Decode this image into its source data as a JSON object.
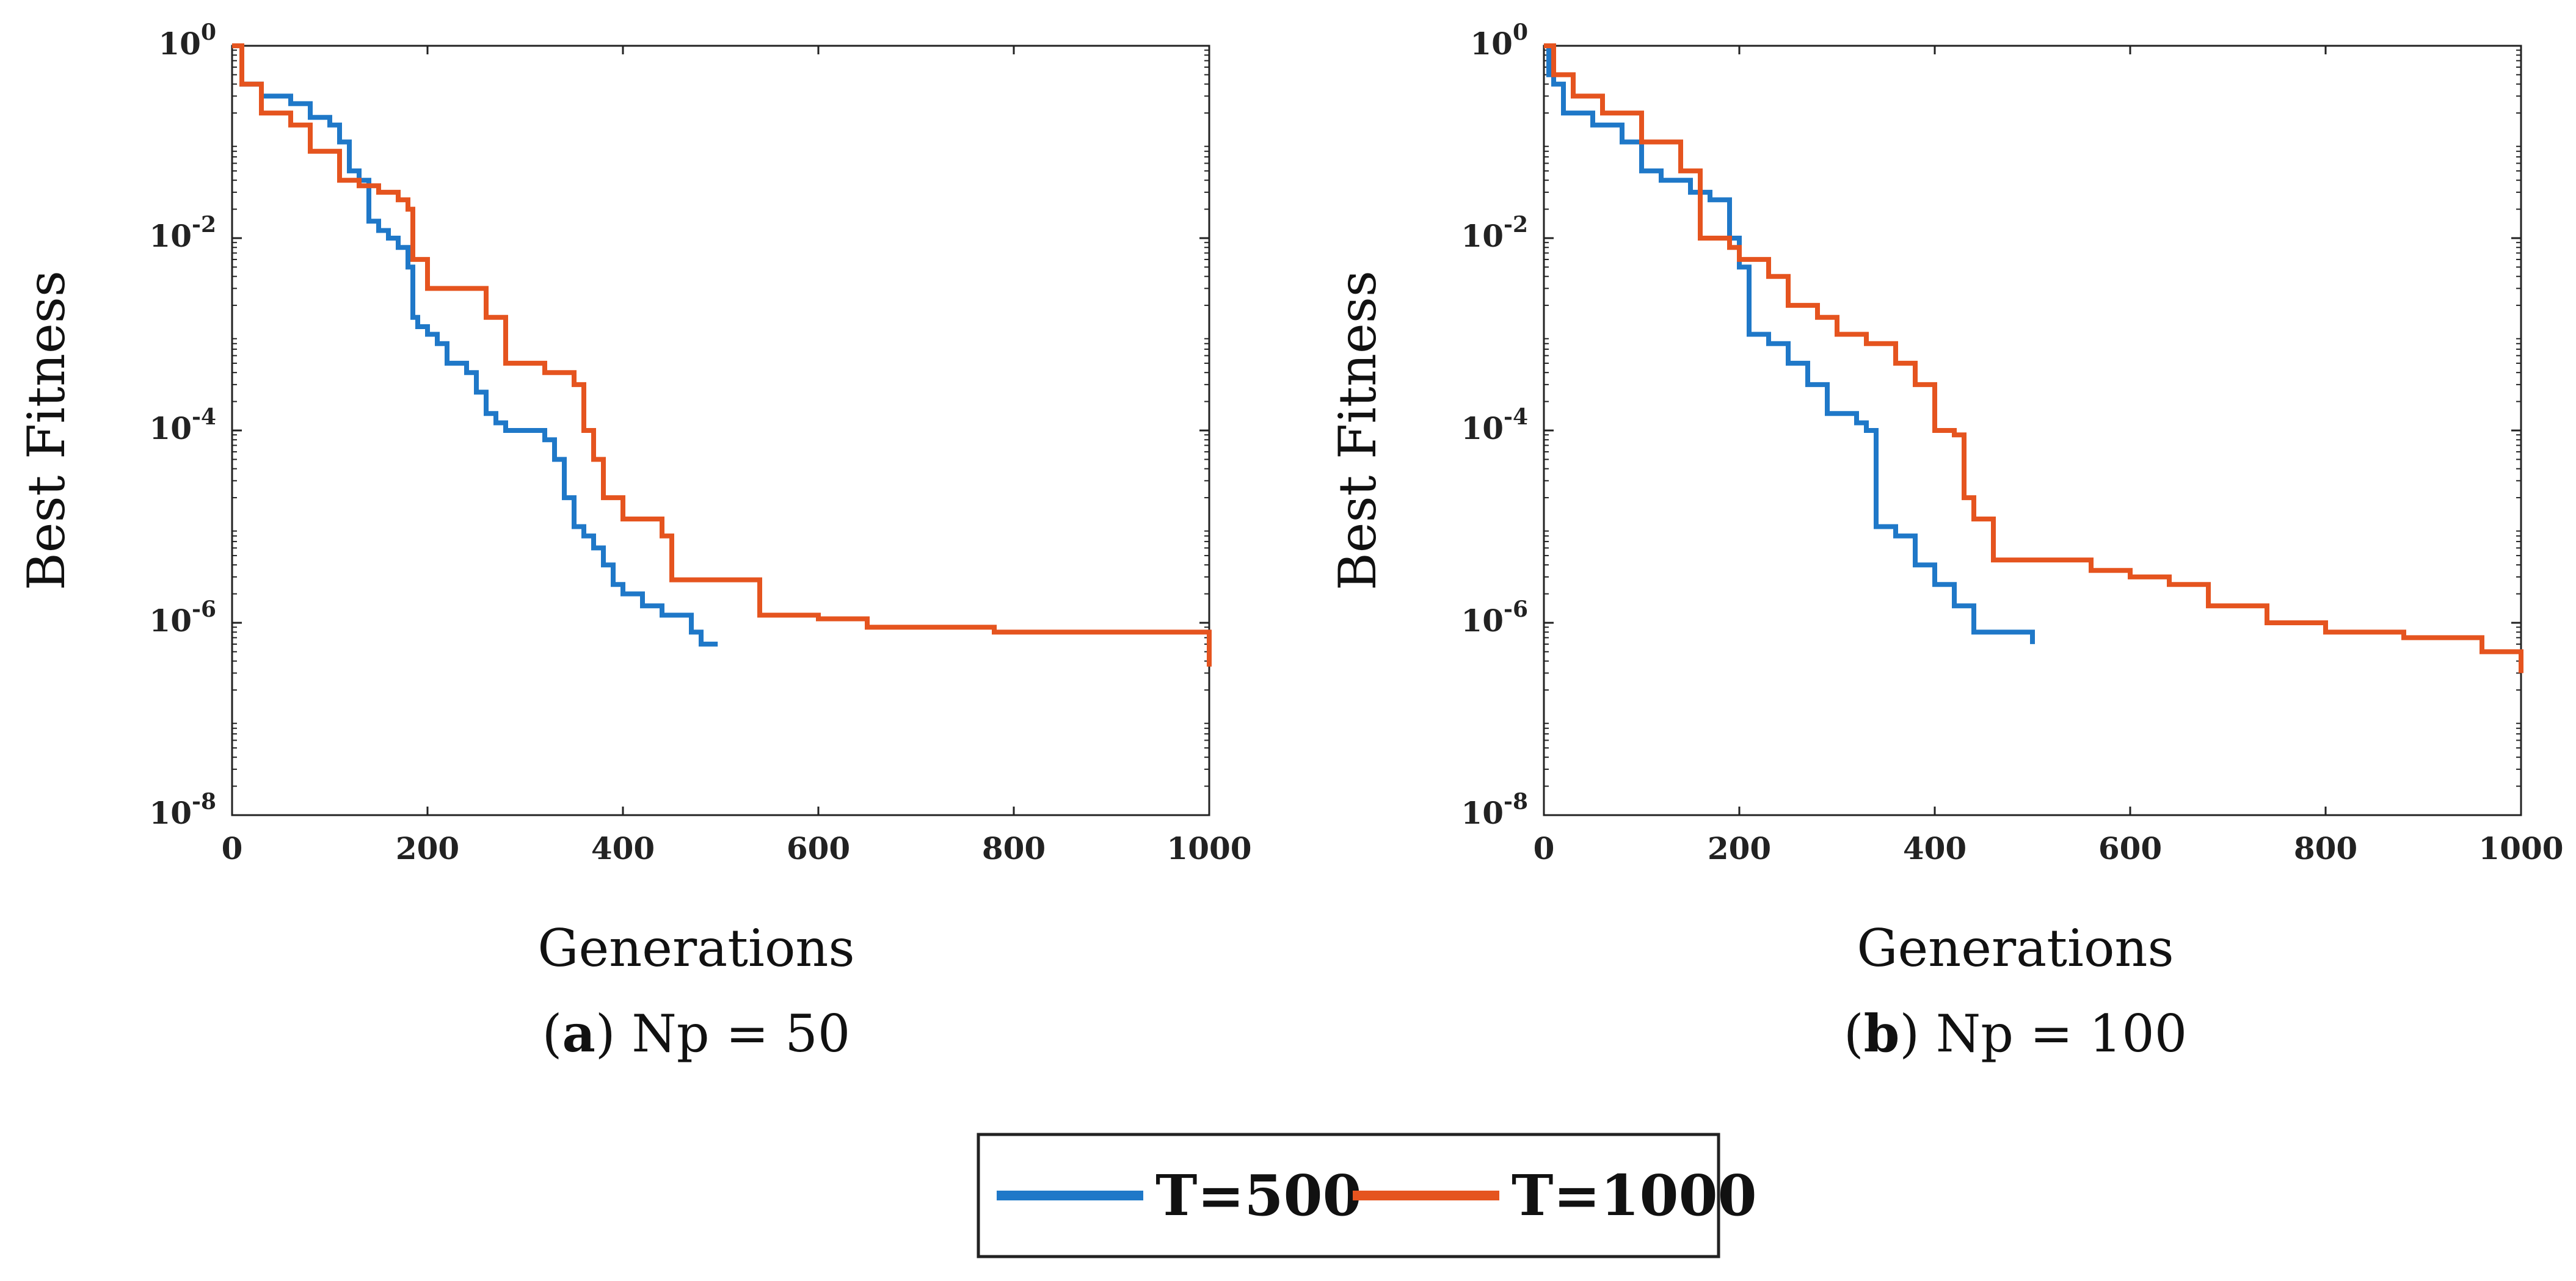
{
  "colors": {
    "series_t500": "#1f78c8",
    "series_t1000": "#e5541f",
    "axes": "#222222"
  },
  "legend": {
    "items": [
      "T=500",
      "T=1000"
    ]
  },
  "chart_data": [
    {
      "type": "line",
      "caption_label": "a",
      "caption_text": ") Np = 50",
      "xlabel": "Generations",
      "ylabel": "Best Fitness",
      "xlim": [
        0,
        1000
      ],
      "ylim_log10": [
        -8,
        0
      ],
      "xticks": [
        "0",
        "200",
        "400",
        "600",
        "800",
        "1000"
      ],
      "yticks": [
        {
          "base": "10",
          "exp": "0"
        },
        {
          "base": "10",
          "exp": "-2"
        },
        {
          "base": "10",
          "exp": "-4"
        },
        {
          "base": "10",
          "exp": "-6"
        },
        {
          "base": "10",
          "exp": "-8"
        }
      ],
      "series": [
        {
          "name": "T=500",
          "x": [
            0,
            10,
            30,
            60,
            80,
            100,
            110,
            120,
            130,
            140,
            150,
            160,
            170,
            180,
            185,
            190,
            200,
            210,
            220,
            240,
            250,
            260,
            270,
            280,
            300,
            320,
            330,
            340,
            350,
            360,
            370,
            380,
            390,
            400,
            420,
            440,
            460,
            470,
            480,
            497
          ],
          "y": [
            1,
            0.4,
            0.3,
            0.25,
            0.18,
            0.15,
            0.1,
            0.05,
            0.04,
            0.015,
            0.012,
            0.01,
            0.008,
            0.005,
            0.0015,
            0.0012,
            0.001,
            0.0008,
            0.0005,
            0.0004,
            0.00025,
            0.00015,
            0.00012,
            0.0001,
            0.0001,
            8e-05,
            5e-05,
            2e-05,
            1e-05,
            8e-06,
            6e-06,
            4e-06,
            2.5e-06,
            2e-06,
            1.5e-06,
            1.2e-06,
            1.2e-06,
            8e-07,
            6e-07,
            6e-07
          ]
        },
        {
          "name": "T=1000",
          "x": [
            0,
            10,
            30,
            60,
            80,
            110,
            130,
            150,
            170,
            180,
            185,
            200,
            230,
            250,
            260,
            280,
            300,
            320,
            350,
            360,
            370,
            380,
            400,
            440,
            450,
            540,
            600,
            650,
            780,
            910,
            1000
          ],
          "y": [
            1,
            0.4,
            0.2,
            0.15,
            0.08,
            0.04,
            0.035,
            0.03,
            0.025,
            0.02,
            0.006,
            0.003,
            0.003,
            0.003,
            0.0015,
            0.0005,
            0.0005,
            0.0004,
            0.0003,
            0.0001,
            5e-05,
            2e-05,
            1.2e-05,
            8e-06,
            2.8e-06,
            1.2e-06,
            1.1e-06,
            9e-07,
            8e-07,
            8e-07,
            3.5e-07
          ]
        }
      ]
    },
    {
      "type": "line",
      "caption_label": "b",
      "caption_text": ") Np = 100",
      "xlabel": "Generations",
      "ylabel": "Best Fitness",
      "xlim": [
        0,
        1000
      ],
      "ylim_log10": [
        -8,
        0
      ],
      "xticks": [
        "0",
        "200",
        "400",
        "600",
        "800",
        "1000"
      ],
      "yticks": [
        {
          "base": "10",
          "exp": "0"
        },
        {
          "base": "10",
          "exp": "-2"
        },
        {
          "base": "10",
          "exp": "-4"
        },
        {
          "base": "10",
          "exp": "-6"
        },
        {
          "base": "10",
          "exp": "-8"
        }
      ],
      "series": [
        {
          "name": "T=500",
          "x": [
            0,
            5,
            10,
            20,
            50,
            80,
            100,
            120,
            150,
            170,
            190,
            200,
            210,
            230,
            250,
            270,
            290,
            320,
            330,
            340,
            360,
            380,
            400,
            420,
            440,
            500
          ],
          "y": [
            1,
            0.5,
            0.4,
            0.2,
            0.15,
            0.1,
            0.05,
            0.04,
            0.03,
            0.025,
            0.01,
            0.005,
            0.001,
            0.0008,
            0.0005,
            0.0003,
            0.00015,
            0.00012,
            0.0001,
            1e-05,
            8e-06,
            4e-06,
            2.5e-06,
            1.5e-06,
            8e-07,
            6e-07
          ]
        },
        {
          "name": "T=1000",
          "x": [
            0,
            10,
            30,
            60,
            100,
            140,
            160,
            190,
            200,
            230,
            250,
            280,
            300,
            330,
            360,
            380,
            400,
            420,
            430,
            440,
            460,
            560,
            600,
            640,
            680,
            740,
            800,
            880,
            960,
            1000
          ],
          "y": [
            1,
            0.5,
            0.3,
            0.2,
            0.1,
            0.05,
            0.01,
            0.008,
            0.006,
            0.004,
            0.002,
            0.0015,
            0.001,
            0.0008,
            0.0005,
            0.0003,
            0.0001,
            9e-05,
            2e-05,
            1.2e-05,
            4.5e-06,
            3.5e-06,
            3e-06,
            2.5e-06,
            1.5e-06,
            1e-06,
            8e-07,
            7e-07,
            5e-07,
            3e-07
          ]
        }
      ]
    }
  ]
}
